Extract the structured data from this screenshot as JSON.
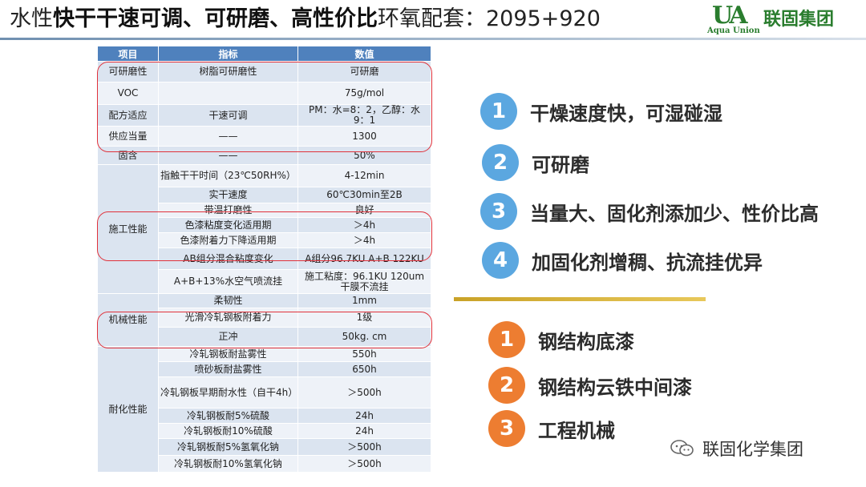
{
  "header": {
    "title_pre": "水性",
    "title_bold": "快干干速可调、可研磨、高性价比",
    "title_post": "环氧配套：2095+920",
    "logo_mark": "UA",
    "logo_en": "Aqua Union",
    "logo_cn": "联固集团"
  },
  "table": {
    "headers": [
      "项目",
      "指标",
      "数值"
    ],
    "rows": [
      {
        "group": "可研磨性",
        "item": "树脂可研磨性",
        "value": "可研磨"
      },
      {
        "group": "VOC",
        "item": "",
        "value": "75g/mol"
      },
      {
        "group": "配方适应",
        "item": "干速可调",
        "value": "PM：水=8：2，乙醇：水 9：1"
      },
      {
        "group": "供应当量",
        "item": "——",
        "value": "1300"
      },
      {
        "group": "固含",
        "item": "——",
        "value": "50%"
      },
      {
        "group": "施工性能",
        "item": "指触干干时间（23℃50RH%）",
        "value": "4-12min"
      },
      {
        "item": "实干速度",
        "value": "60℃30min至2B"
      },
      {
        "item": "带温打磨性",
        "value": "良好"
      },
      {
        "item": "色漆粘度变化适用期",
        "value": "＞4h"
      },
      {
        "item": "色漆附着力下降适用期",
        "value": "＞4h"
      },
      {
        "item": "AB组分混合粘度变化",
        "value": "A组分96.7KU A+B 122KU"
      },
      {
        "item": "A+B+13%水空气喷流挂",
        "value": "施工粘度：96.1KU 120um干膜不流挂"
      },
      {
        "group": "机械性能",
        "item": "柔韧性",
        "value": "1mm"
      },
      {
        "item": "光滑冷轧钢板附着力",
        "value": "1级"
      },
      {
        "item": "正冲",
        "value": "50kg. cm"
      },
      {
        "group": "耐化性能",
        "item": "冷轧钢板耐盐雾性",
        "value": "550h"
      },
      {
        "item": "喷砂板耐盐雾性",
        "value": "650h"
      },
      {
        "item": "冷轧钢板早期耐水性（自干4h）",
        "value": "＞500h"
      },
      {
        "item": "冷轧钢板耐5%硫酸",
        "value": "24h"
      },
      {
        "item": "冷轧钢板耐10%硫酸",
        "value": "24h"
      },
      {
        "item": "冷轧钢板耐5%氢氧化钠",
        "value": "＞500h"
      },
      {
        "item": "冷轧钢板耐10%氢氧化钠",
        "value": "＞500h"
      }
    ]
  },
  "features": [
    {
      "num": "1",
      "text": "干燥速度快，可湿碰湿"
    },
    {
      "num": "2",
      "text": "可研磨"
    },
    {
      "num": "3",
      "text": "当量大、固化剂添加少、性价比高"
    },
    {
      "num": "4",
      "text": "加固化剂增稠、抗流挂优异"
    }
  ],
  "applications": [
    {
      "num": "1",
      "text": "钢结构底漆"
    },
    {
      "num": "2",
      "text": "钢结构云铁中间漆"
    },
    {
      "num": "3",
      "text": "工程机械"
    }
  ],
  "watermark": {
    "text": "联固化学集团",
    "icon": "wechat-icon"
  },
  "colors": {
    "header_blue": "#4f81bd",
    "row_light": "#dbe4f0",
    "highlight_red": "#e0313a",
    "feature_blue": "#5ba7e0",
    "app_orange": "#ed7d31",
    "logo_green": "#2a7d2e"
  }
}
